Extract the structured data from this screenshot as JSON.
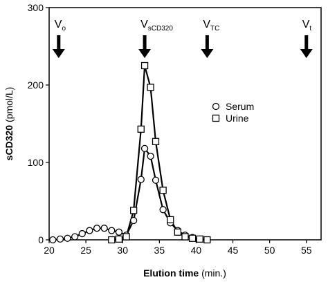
{
  "chart_data": {
    "type": "line",
    "xlabel_bold": "Elution time",
    "xlabel_unit": "(min.)",
    "ylabel_bold": "sCD320",
    "ylabel_unit": "(pmol/L)",
    "xlim": [
      20,
      57
    ],
    "ylim": [
      0,
      300
    ],
    "x_ticks": [
      "20",
      "25",
      "30",
      "35",
      "40",
      "45",
      "50",
      "55"
    ],
    "x_tick_values": [
      20,
      25,
      30,
      35,
      40,
      45,
      50,
      55
    ],
    "y_ticks": [
      "0",
      "100",
      "200",
      "300"
    ],
    "y_tick_values": [
      0,
      100,
      200,
      300
    ],
    "grid": false,
    "legend_position": "center-right",
    "series": [
      {
        "name": "Serum",
        "marker": "circle",
        "x": [
          20.5,
          21.5,
          22.5,
          23.5,
          24.5,
          25.5,
          26.5,
          27.5,
          28.5,
          29.5,
          30.5,
          31.5,
          32.5,
          33.0,
          33.8,
          34.5,
          35.5,
          36.5,
          37.5,
          38.5,
          39.5,
          40.5
        ],
        "y": [
          0,
          1,
          2,
          4,
          8,
          12,
          15,
          15,
          12,
          10,
          6,
          25,
          78,
          118,
          108,
          77,
          39,
          22,
          12,
          6,
          3,
          1
        ]
      },
      {
        "name": "Urine",
        "marker": "square",
        "x": [
          28.5,
          29.5,
          30.5,
          31.5,
          32.5,
          33.0,
          33.8,
          34.5,
          35.5,
          36.5,
          37.5,
          38.5,
          39.5,
          40.5,
          41.5
        ],
        "y": [
          0,
          1,
          4,
          38,
          143,
          225,
          197,
          127,
          64,
          26,
          10,
          4,
          2,
          1,
          0
        ]
      }
    ],
    "annotations": [
      {
        "main": "V",
        "sub": "o",
        "x": 21.3
      },
      {
        "main": "V",
        "sub": "sCD320",
        "x": 33.0
      },
      {
        "main": "V",
        "sub": "TC",
        "x": 41.5
      },
      {
        "main": "V",
        "sub": "t",
        "x": 55.0
      }
    ]
  }
}
